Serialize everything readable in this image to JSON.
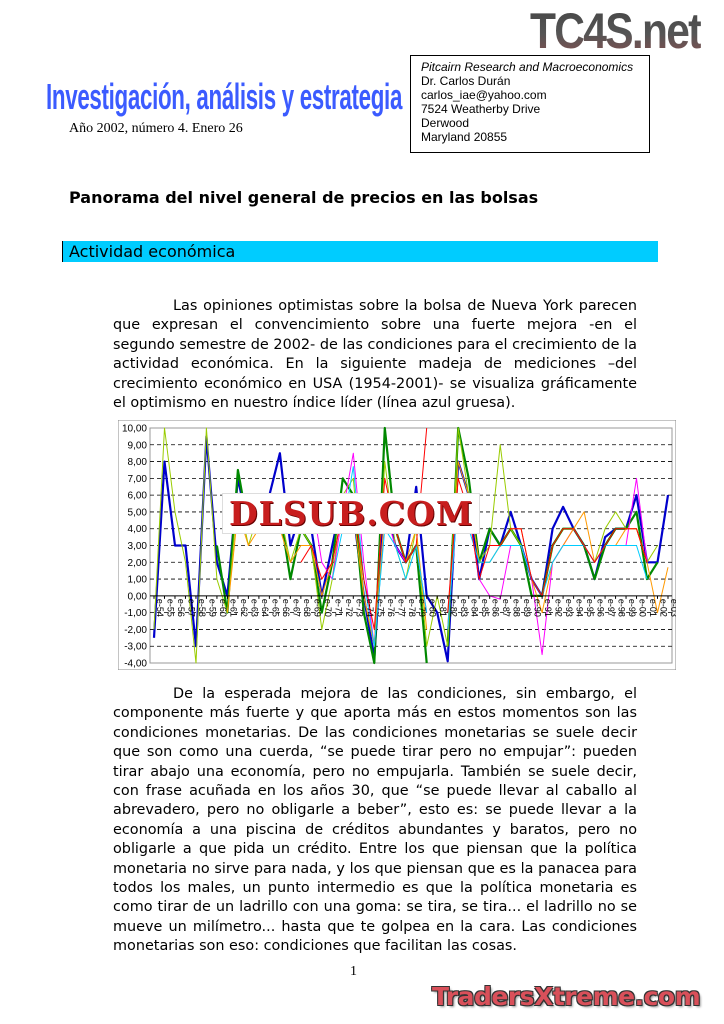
{
  "logos": {
    "top_right": "TC4S.net",
    "bottom_right": "TradersXtreme.com",
    "chart_watermark": "DLSUB.COM"
  },
  "masthead": {
    "title": "Investigación, análisis y estrategia",
    "issue": "Año 2002, número 4. Enero 26"
  },
  "contact": {
    "organization": "Pitcairn Research and Macroeconomics",
    "name": "Dr. Carlos Durán",
    "email": "carlos_iae@yahoo.com",
    "street": "7524 Weatherby Drive",
    "city": "Derwood",
    "state_zip": "Maryland 20855"
  },
  "document": {
    "title": "Panorama del nivel general de precios en las bolsas",
    "section": "Actividad económica",
    "paragraphs": [
      "Las opiniones optimistas sobre la bolsa de Nueva York parecen que expresan el convencimiento sobre una fuerte mejora -en el segundo semestre de 2002- de las condiciones para el crecimiento de la actividad económica. En la siguiente madeja de mediciones –del crecimiento económico en USA (1954-2001)- se visualiza gráficamente el optimismo en nuestro índice líder (línea azul gruesa).",
      "De la esperada mejora de las condiciones, sin embargo, el componente más fuerte y que aporta más en estos momentos son las condiciones monetarias. De las condiciones monetarias se suele decir que son como una cuerda, “se puede tirar pero no empujar”: pueden tirar abajo una economía, pero no empujarla. También se suele decir, con frase acuñada en los años 30, que “se puede llevar al caballo al abrevadero, pero no obligarle a beber”, esto es: se puede llevar a la economía a una piscina de créditos abundantes y baratos, pero no obligarle a que pida un crédito. Entre los que piensan que la política monetaria no sirve para nada, y los que piensan que es la panacea para todos los males, un punto intermedio es que la política monetaria es como tirar de un ladrillo con una goma: se tira, se tira... el ladrillo no se mueve un milímetro... hasta que te golpea en la cara. Las condiciones monetarias son eso: condiciones que facilitan las cosas."
    ],
    "page_number": "1"
  },
  "chart_data": {
    "type": "line",
    "title": "",
    "xlabel": "",
    "ylabel": "",
    "ylim": [
      -4,
      10
    ],
    "yticks": [
      "10,00",
      "9,00",
      "8,00",
      "7,00",
      "6,00",
      "5,00",
      "4,00",
      "3,00",
      "2,00",
      "1,00",
      "0,00",
      "-1,00",
      "-2,00",
      "-3,00",
      "-4,00"
    ],
    "grid": "horizontal dashed",
    "legend": "none",
    "categories": [
      "e-54",
      "e-55",
      "e-56",
      "e-57",
      "e-58",
      "e-59",
      "e-60",
      "e-61",
      "e-62",
      "e-63",
      "e-64",
      "e-65",
      "e-66",
      "e-67",
      "e-68",
      "e-69",
      "e-70",
      "e-71",
      "e-72",
      "e-73",
      "e-74",
      "e-75",
      "e-76",
      "e-77",
      "e-78",
      "e-79",
      "e-80",
      "e-81",
      "e-82",
      "e-83",
      "e-84",
      "e-85",
      "e-86",
      "e-87",
      "e-88",
      "e-89",
      "e-90",
      "e-91",
      "e-92",
      "e-93",
      "e-94",
      "e-95",
      "e-96",
      "e-97",
      "e-98",
      "e-99",
      "e-00",
      "e-01",
      "e-02",
      "e-03"
    ],
    "series": [
      {
        "color": "#0000cc",
        "thick": true,
        "values": [
          -2.5,
          8,
          3,
          3,
          -3,
          9.5,
          2,
          0,
          7,
          4,
          6,
          6,
          8.5,
          3,
          5,
          4,
          0,
          3,
          6,
          5,
          0,
          -3.7,
          6,
          3,
          2,
          6.5,
          0,
          -1,
          -3.9,
          8,
          6,
          1,
          4,
          3,
          5,
          3,
          1,
          0,
          4,
          5.3,
          4,
          3,
          1,
          3.5,
          4,
          4,
          6,
          2,
          2,
          6
        ]
      },
      {
        "color": "#008800",
        "thick": true,
        "values": [
          null,
          null,
          null,
          null,
          null,
          null,
          3,
          -1,
          7.5,
          4,
          5,
          5,
          5,
          1,
          4,
          3,
          -1,
          2,
          7,
          6,
          -1,
          -4,
          10,
          4,
          2,
          3,
          -4,
          null,
          -3,
          10,
          7,
          2,
          4,
          3,
          4,
          3,
          0,
          0,
          3,
          4,
          4,
          3,
          1,
          3,
          4,
          4,
          5,
          1,
          2,
          null
        ]
      },
      {
        "color": "#99cc00",
        "thick": false,
        "values": [
          -2,
          10,
          5,
          2,
          -4,
          10,
          1,
          -1,
          6,
          3,
          5,
          4,
          5,
          2,
          4,
          3,
          -2,
          1,
          6,
          7,
          0,
          -3,
          8,
          3,
          1,
          4,
          -3,
          0,
          -3,
          10,
          6,
          2,
          3,
          9,
          4,
          3,
          1,
          0,
          3,
          4,
          4,
          3,
          2,
          4,
          5,
          4,
          4,
          2,
          3,
          null
        ]
      },
      {
        "color": "#ff00ff",
        "thick": false,
        "values": [
          null,
          null,
          null,
          null,
          null,
          null,
          null,
          null,
          null,
          null,
          null,
          null,
          null,
          null,
          null,
          6,
          2,
          1,
          5,
          8.5,
          2,
          -3,
          5,
          3,
          2,
          3,
          -1,
          null,
          -2,
          6,
          5,
          1,
          0,
          -0.2,
          3,
          3,
          1,
          -3.5,
          2,
          3,
          4,
          3,
          2,
          3,
          3,
          3,
          7,
          2,
          null,
          null
        ]
      },
      {
        "color": "#ff9900",
        "thick": false,
        "values": [
          null,
          null,
          null,
          null,
          null,
          null,
          null,
          -1,
          5,
          3,
          4,
          4,
          4,
          2,
          3,
          3,
          0,
          2,
          5,
          5,
          0,
          -3,
          5,
          4,
          2,
          4,
          -2,
          null,
          -2,
          8,
          6,
          2,
          2,
          3,
          4,
          4,
          1,
          -1,
          2,
          3,
          4,
          5,
          2,
          3,
          3,
          4,
          4,
          2,
          -1,
          1.7
        ]
      },
      {
        "color": "#00ccff",
        "thick": false,
        "values": [
          null,
          null,
          null,
          null,
          null,
          null,
          null,
          null,
          null,
          null,
          null,
          null,
          null,
          null,
          null,
          null,
          null,
          1,
          4,
          7.7,
          1,
          -3,
          4,
          3,
          1,
          3,
          -1,
          null,
          -2,
          6,
          4,
          2,
          2,
          3,
          3,
          3,
          1,
          0,
          2,
          3,
          3,
          3,
          2,
          3,
          3,
          3,
          3,
          1,
          null,
          null
        ]
      },
      {
        "color": "#ff0000",
        "thick": false,
        "values": [
          null,
          null,
          null,
          null,
          null,
          null,
          null,
          null,
          null,
          null,
          null,
          null,
          null,
          null,
          2,
          3,
          1,
          2,
          5,
          6,
          1,
          -2,
          7,
          4,
          2,
          3,
          10,
          null,
          -1,
          7,
          5,
          1,
          3,
          3,
          4,
          4,
          1,
          0,
          3,
          4,
          4,
          3,
          2,
          3,
          4,
          4,
          4,
          2,
          null,
          null
        ]
      }
    ]
  }
}
